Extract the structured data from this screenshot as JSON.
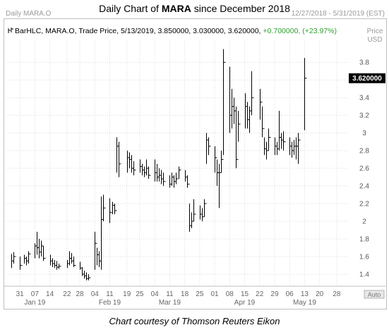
{
  "title": {
    "prefix": "Daily Chart of ",
    "ticker": "MARA",
    "suffix": " since December 2018"
  },
  "panel": {
    "symbol": "Daily MARA.O",
    "date_range": "12/27/2018 - 5/31/2019 (EST)",
    "legend_line": "BarHLC, MARA.O, Trade Price, 5/13/2019, 3.850000, 3.030000, 3.620000,",
    "legend_change": "+0.700000, (+23.97%)",
    "axis_title_1": "Price",
    "axis_title_2": "USD",
    "auto_label": "Auto"
  },
  "caption": "Chart courtesy of Thomson Reuters Eikon",
  "colors": {
    "bars": "#000000",
    "grid": "#d9d9d9",
    "change": "#2e9e2e",
    "label_box": "#000000"
  },
  "chart_data": {
    "type": "bar",
    "subtype": "HLC",
    "series_name": "MARA.O",
    "y_ticks": [
      1.4,
      1.6,
      1.8,
      2,
      2.2,
      2.4,
      2.6,
      2.8,
      3,
      3.2,
      3.4,
      3.6,
      3.8
    ],
    "y_tick_labels": [
      "1.4",
      "1.6",
      "1.8",
      "2",
      "2.2",
      "2.4",
      "2.6",
      "2.8",
      "3",
      "3.2",
      "3.4",
      "3.6",
      "3.8"
    ],
    "ylim": [
      1.28,
      4.05
    ],
    "last_price": 3.62,
    "last_price_label": "3.620000",
    "x_day_labels": [
      "31",
      "07",
      "14",
      "22",
      "28",
      "04",
      "11",
      "19",
      "25",
      "04",
      "11",
      "18",
      "25",
      "01",
      "08",
      "15",
      "22",
      "29",
      "06",
      "13",
      "20",
      "28"
    ],
    "x_month_labels": [
      "Jan 19",
      "Feb 19",
      "Mar 19",
      "Apr 19",
      "May 19"
    ],
    "x_month_label_days": [
      "07",
      "11",
      "11",
      "15",
      "13"
    ],
    "grid": true,
    "bars": [
      {
        "x": "12/27/2018",
        "h": 1.63,
        "l": 1.47,
        "c": 1.55
      },
      {
        "x": "12/28/2018",
        "h": 1.65,
        "l": 1.52,
        "c": 1.6
      },
      {
        "x": "12/31/2018",
        "h": 1.6,
        "l": 1.45,
        "c": 1.5
      },
      {
        "x": "01/02/2019",
        "h": 1.62,
        "l": 1.52,
        "c": 1.58
      },
      {
        "x": "01/03/2019",
        "h": 1.6,
        "l": 1.5,
        "c": 1.55
      },
      {
        "x": "01/04/2019",
        "h": 1.66,
        "l": 1.52,
        "c": 1.63
      },
      {
        "x": "01/07/2019",
        "h": 1.75,
        "l": 1.58,
        "c": 1.72
      },
      {
        "x": "01/08/2019",
        "h": 1.88,
        "l": 1.62,
        "c": 1.7
      },
      {
        "x": "01/09/2019",
        "h": 1.8,
        "l": 1.58,
        "c": 1.65
      },
      {
        "x": "01/10/2019",
        "h": 1.78,
        "l": 1.6,
        "c": 1.72
      },
      {
        "x": "01/11/2019",
        "h": 1.72,
        "l": 1.55,
        "c": 1.58
      },
      {
        "x": "01/14/2019",
        "h": 1.62,
        "l": 1.5,
        "c": 1.55
      },
      {
        "x": "01/15/2019",
        "h": 1.58,
        "l": 1.48,
        "c": 1.52
      },
      {
        "x": "01/16/2019",
        "h": 1.56,
        "l": 1.47,
        "c": 1.5
      },
      {
        "x": "01/17/2019",
        "h": 1.55,
        "l": 1.45,
        "c": 1.48
      },
      {
        "x": "01/18/2019",
        "h": 1.52,
        "l": 1.46,
        "c": 1.49
      },
      {
        "x": "01/22/2019",
        "h": 1.56,
        "l": 1.47,
        "c": 1.52
      },
      {
        "x": "01/23/2019",
        "h": 1.66,
        "l": 1.5,
        "c": 1.58
      },
      {
        "x": "01/24/2019",
        "h": 1.64,
        "l": 1.52,
        "c": 1.55
      },
      {
        "x": "01/25/2019",
        "h": 1.6,
        "l": 1.48,
        "c": 1.5
      },
      {
        "x": "01/28/2019",
        "h": 1.54,
        "l": 1.45,
        "c": 1.47
      },
      {
        "x": "01/29/2019",
        "h": 1.48,
        "l": 1.38,
        "c": 1.4
      },
      {
        "x": "01/30/2019",
        "h": 1.44,
        "l": 1.35,
        "c": 1.38
      },
      {
        "x": "01/31/2019",
        "h": 1.42,
        "l": 1.33,
        "c": 1.35
      },
      {
        "x": "02/01/2019",
        "h": 1.4,
        "l": 1.33,
        "c": 1.36
      },
      {
        "x": "02/04/2019",
        "h": 1.88,
        "l": 1.45,
        "c": 1.75
      },
      {
        "x": "02/05/2019",
        "h": 1.7,
        "l": 1.5,
        "c": 1.62
      },
      {
        "x": "02/06/2019",
        "h": 1.66,
        "l": 1.48,
        "c": 1.55
      },
      {
        "x": "02/07/2019",
        "h": 2.28,
        "l": 1.45,
        "c": 2.02
      },
      {
        "x": "02/08/2019",
        "h": 2.3,
        "l": 2.0,
        "c": 2.15
      },
      {
        "x": "02/11/2019",
        "h": 2.26,
        "l": 1.98,
        "c": 2.1
      },
      {
        "x": "02/12/2019",
        "h": 2.22,
        "l": 2.08,
        "c": 2.18
      },
      {
        "x": "02/13/2019",
        "h": 2.2,
        "l": 2.08,
        "c": 2.12
      },
      {
        "x": "02/14/2019",
        "h": 2.95,
        "l": 2.55,
        "c": 2.85
      },
      {
        "x": "02/15/2019",
        "h": 2.9,
        "l": 2.5,
        "c": 2.65
      },
      {
        "x": "02/19/2019",
        "h": 2.8,
        "l": 2.55,
        "c": 2.72
      },
      {
        "x": "02/20/2019",
        "h": 2.78,
        "l": 2.6,
        "c": 2.7
      },
      {
        "x": "02/21/2019",
        "h": 2.75,
        "l": 2.55,
        "c": 2.6
      },
      {
        "x": "02/22/2019",
        "h": 2.68,
        "l": 2.52,
        "c": 2.58
      },
      {
        "x": "02/25/2019",
        "h": 2.7,
        "l": 2.55,
        "c": 2.62
      },
      {
        "x": "02/26/2019",
        "h": 2.65,
        "l": 2.52,
        "c": 2.58
      },
      {
        "x": "02/27/2019",
        "h": 2.62,
        "l": 2.5,
        "c": 2.55
      },
      {
        "x": "02/28/2019",
        "h": 2.7,
        "l": 2.52,
        "c": 2.6
      },
      {
        "x": "03/01/2019",
        "h": 2.62,
        "l": 2.48,
        "c": 2.52
      },
      {
        "x": "03/04/2019",
        "h": 2.7,
        "l": 2.45,
        "c": 2.55
      },
      {
        "x": "03/05/2019",
        "h": 2.65,
        "l": 2.45,
        "c": 2.5
      },
      {
        "x": "03/06/2019",
        "h": 2.6,
        "l": 2.45,
        "c": 2.52
      },
      {
        "x": "03/07/2019",
        "h": 2.58,
        "l": 2.42,
        "c": 2.48
      },
      {
        "x": "03/08/2019",
        "h": 2.55,
        "l": 2.4,
        "c": 2.45
      },
      {
        "x": "03/11/2019",
        "h": 2.52,
        "l": 2.38,
        "c": 2.42
      },
      {
        "x": "03/12/2019",
        "h": 2.55,
        "l": 2.4,
        "c": 2.5
      },
      {
        "x": "03/13/2019",
        "h": 2.52,
        "l": 2.38,
        "c": 2.45
      },
      {
        "x": "03/14/2019",
        "h": 2.55,
        "l": 2.42,
        "c": 2.48
      },
      {
        "x": "03/15/2019",
        "h": 2.62,
        "l": 2.48,
        "c": 2.58
      },
      {
        "x": "03/18/2019",
        "h": 2.58,
        "l": 2.45,
        "c": 2.5
      },
      {
        "x": "03/19/2019",
        "h": 2.52,
        "l": 2.38,
        "c": 2.42
      },
      {
        "x": "03/20/2019",
        "h": 2.2,
        "l": 1.88,
        "c": 1.95
      },
      {
        "x": "03/21/2019",
        "h": 2.1,
        "l": 1.92,
        "c": 2.0
      },
      {
        "x": "03/22/2019",
        "h": 2.25,
        "l": 2.0,
        "c": 2.08
      },
      {
        "x": "03/25/2019",
        "h": 2.18,
        "l": 2.02,
        "c": 2.08
      },
      {
        "x": "03/26/2019",
        "h": 2.15,
        "l": 2.0,
        "c": 2.05
      },
      {
        "x": "03/27/2019",
        "h": 2.25,
        "l": 2.05,
        "c": 2.2
      },
      {
        "x": "03/28/2019",
        "h": 3.0,
        "l": 2.65,
        "c": 2.92
      },
      {
        "x": "03/29/2019",
        "h": 2.95,
        "l": 2.75,
        "c": 2.85
      },
      {
        "x": "04/01/2019",
        "h": 2.85,
        "l": 2.55,
        "c": 2.72
      },
      {
        "x": "04/02/2019",
        "h": 2.7,
        "l": 2.4,
        "c": 2.55
      },
      {
        "x": "04/03/2019",
        "h": 2.65,
        "l": 2.15,
        "c": 2.55
      },
      {
        "x": "04/04/2019",
        "h": 2.8,
        "l": 2.55,
        "c": 2.7
      },
      {
        "x": "04/05/2019",
        "h": 3.95,
        "l": 2.75,
        "c": 3.8
      },
      {
        "x": "04/08/2019",
        "h": 3.75,
        "l": 3.0,
        "c": 3.2
      },
      {
        "x": "04/09/2019",
        "h": 3.5,
        "l": 3.05,
        "c": 3.3
      },
      {
        "x": "04/10/2019",
        "h": 3.4,
        "l": 3.1,
        "c": 3.25
      },
      {
        "x": "04/11/2019",
        "h": 3.3,
        "l": 2.6,
        "c": 2.7
      },
      {
        "x": "04/12/2019",
        "h": 3.25,
        "l": 2.9,
        "c": 3.1
      },
      {
        "x": "04/15/2019",
        "h": 3.45,
        "l": 3.05,
        "c": 3.3
      },
      {
        "x": "04/16/2019",
        "h": 3.35,
        "l": 3.05,
        "c": 3.15
      },
      {
        "x": "04/17/2019",
        "h": 3.3,
        "l": 3.0,
        "c": 3.25
      },
      {
        "x": "04/18/2019",
        "h": 3.7,
        "l": 3.2,
        "c": 3.4
      },
      {
        "x": "04/22/2019",
        "h": 3.5,
        "l": 3.15,
        "c": 3.35
      },
      {
        "x": "04/23/2019",
        "h": 3.3,
        "l": 2.95,
        "c": 3.05
      },
      {
        "x": "04/24/2019",
        "h": 2.95,
        "l": 2.75,
        "c": 2.82
      },
      {
        "x": "04/25/2019",
        "h": 2.9,
        "l": 2.7,
        "c": 2.8
      },
      {
        "x": "04/26/2019",
        "h": 3.05,
        "l": 2.8,
        "c": 2.95
      },
      {
        "x": "04/29/2019",
        "h": 2.95,
        "l": 2.75,
        "c": 2.85
      },
      {
        "x": "04/30/2019",
        "h": 2.9,
        "l": 2.75,
        "c": 2.82
      },
      {
        "x": "05/01/2019",
        "h": 3.25,
        "l": 2.8,
        "c": 2.95
      },
      {
        "x": "05/02/2019",
        "h": 3.0,
        "l": 2.82,
        "c": 2.92
      },
      {
        "x": "05/03/2019",
        "h": 3.02,
        "l": 2.8,
        "c": 2.9
      },
      {
        "x": "05/06/2019",
        "h": 2.95,
        "l": 2.75,
        "c": 2.85
      },
      {
        "x": "05/07/2019",
        "h": 2.9,
        "l": 2.72,
        "c": 2.8
      },
      {
        "x": "05/08/2019",
        "h": 2.92,
        "l": 2.75,
        "c": 2.85
      },
      {
        "x": "05/09/2019",
        "h": 2.95,
        "l": 2.7,
        "c": 2.85
      },
      {
        "x": "05/10/2019",
        "h": 3.0,
        "l": 2.65,
        "c": 2.92
      },
      {
        "x": "05/13/2019",
        "h": 3.85,
        "l": 3.03,
        "c": 3.62
      }
    ]
  }
}
